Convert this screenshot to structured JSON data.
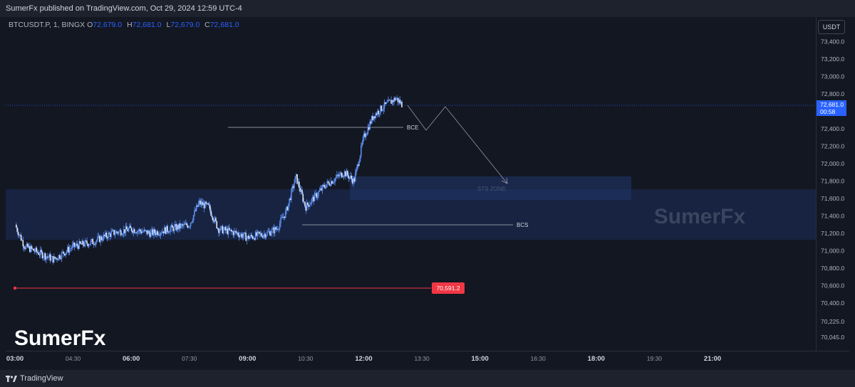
{
  "header": {
    "published": "SumerFx published on TradingView.com, Oct 29, 2024 12:59 UTC-4"
  },
  "legend": {
    "symbol": "BTCUSDT.P, 1, BINGX",
    "open_label": "O",
    "open": "72,679.0",
    "high_label": "H",
    "high": "72,681.0",
    "low_label": "L",
    "low": "72,679.0",
    "close_label": "C",
    "close": "72,681.0"
  },
  "currency_button": "USDT",
  "footer": {
    "brand": "TradingView"
  },
  "colors": {
    "background": "#131722",
    "candle": "#5b8def",
    "zone": "#1c2e5a",
    "red_line": "#f23645",
    "last_price": "#2962ff"
  },
  "chart_data": {
    "type": "candlestick",
    "symbol": "BTCUSDT.P",
    "timeframe": "1",
    "x_tick_labels": [
      "03:00",
      "04:30",
      "06:00",
      "07:30",
      "09:00",
      "10:30",
      "12:00",
      "13:30",
      "15:00",
      "16:30",
      "18:00",
      "19:30",
      "21:00"
    ],
    "x_tick_bold": [
      "03:00",
      "06:00",
      "09:00",
      "12:00",
      "15:00",
      "18:00",
      "21:00"
    ],
    "y_tick_labels": [
      "73,400.0",
      "73,200.0",
      "73,000.0",
      "72,800.0",
      "72,400.0",
      "72,200.0",
      "72,000.0",
      "71,800.0",
      "71,600.0",
      "71,400.0",
      "71,200.0",
      "71,000.0",
      "70,800.0",
      "70,600.0",
      "70,400.0",
      "70,225.0",
      "70,045.0"
    ],
    "price_path": [
      [
        "03:00",
        71300
      ],
      [
        "03:15",
        71050
      ],
      [
        "03:45",
        70950
      ],
      [
        "04:00",
        70900
      ],
      [
        "04:30",
        71050
      ],
      [
        "05:00",
        71100
      ],
      [
        "05:30",
        71200
      ],
      [
        "06:00",
        71250
      ],
      [
        "06:30",
        71200
      ],
      [
        "07:00",
        71250
      ],
      [
        "07:30",
        71300
      ],
      [
        "07:45",
        71550
      ],
      [
        "08:00",
        71500
      ],
      [
        "08:15",
        71250
      ],
      [
        "08:45",
        71200
      ],
      [
        "09:00",
        71150
      ],
      [
        "09:30",
        71200
      ],
      [
        "09:45",
        71250
      ],
      [
        "10:00",
        71450
      ],
      [
        "10:15",
        71850
      ],
      [
        "10:30",
        71500
      ],
      [
        "11:00",
        71750
      ],
      [
        "11:30",
        71900
      ],
      [
        "11:45",
        71800
      ],
      [
        "12:00",
        72300
      ],
      [
        "12:15",
        72550
      ],
      [
        "12:30",
        72650
      ],
      [
        "12:50",
        72750
      ],
      [
        "12:59",
        72681
      ]
    ],
    "last_price": "72,681.0",
    "countdown": "00:58",
    "annotations": {
      "bce_label": "BCE",
      "bcs_label": "BCS",
      "zone_label": "STS ZONE",
      "red_level": "70,591.2",
      "watermark": "SumerFx"
    },
    "projection": [
      "12:59",
      "13:15",
      "13:30",
      "14:30"
    ]
  }
}
